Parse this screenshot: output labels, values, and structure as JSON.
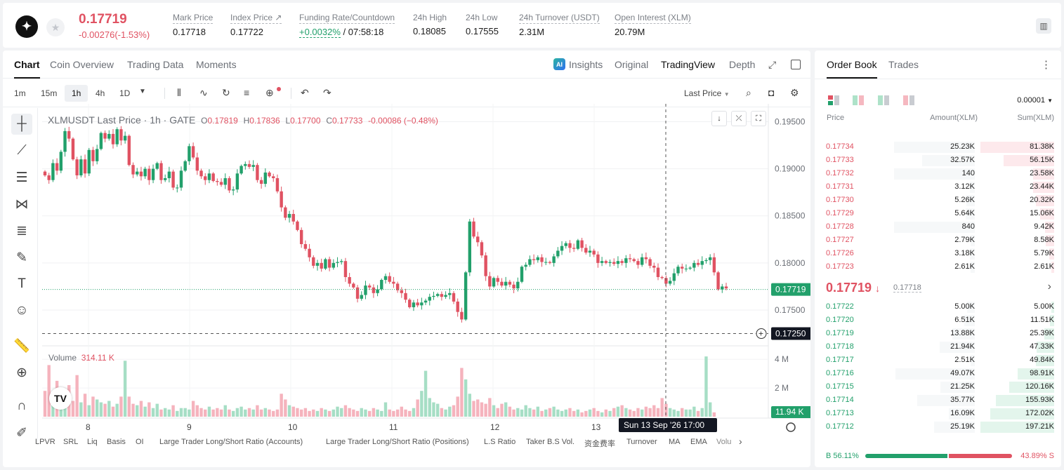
{
  "header": {
    "last_price": "0.17719",
    "change": "-0.00276(-1.53%)",
    "stats": [
      {
        "label": "Mark Price",
        "value": "0.17718"
      },
      {
        "label": "Index Price ↗",
        "value": "0.17722"
      },
      {
        "label": "Funding Rate/Countdown",
        "value": "+0.0032%",
        "value2": " / 07:58:18"
      },
      {
        "label": "24h High",
        "value": "0.18085"
      },
      {
        "label": "24h Low",
        "value": "0.17555"
      },
      {
        "label": "24h Turnover (USDT)",
        "value": "2.31M"
      },
      {
        "label": "Open Interest (XLM)",
        "value": "20.79M"
      }
    ]
  },
  "chart_panel": {
    "tabs": [
      "Chart",
      "Coin Overview",
      "Trading Data",
      "Moments"
    ],
    "right_tabs": [
      "Insights",
      "Original",
      "TradingView",
      "Depth"
    ],
    "ai_badge": "AI",
    "timeframes": [
      "1m",
      "15m",
      "1h",
      "4h",
      "1D"
    ],
    "last_price_selector": "Last Price",
    "legend": {
      "symbol": "XLMUSDT Last Price · 1h · GATE",
      "o_key": "O",
      "o": "0.17819",
      "h_key": "H",
      "h": "0.17836",
      "l_key": "L",
      "l": "0.17700",
      "c_key": "C",
      "c": "0.17733",
      "chg": "-0.00086 (−0.48%)"
    },
    "volume_label": "Volume",
    "volume_value": "314.11 K",
    "price_tag": "0.17719",
    "crosshair_price": "0.17250",
    "volume_tag": "11.94 K",
    "crosshair_time": "Sun 13 Sep '26   17:00",
    "indicators": [
      "LPVR",
      "SRL",
      "Liq",
      "Basis",
      "OI",
      "Large Trader Long/Short Ratio (Accounts)",
      "Large Trader Long/Short Ratio (Positions)",
      "L.S Ratio",
      "Taker B.S Vol.",
      "资金费率",
      "Turnover",
      "MA",
      "EMA",
      "Volu"
    ]
  },
  "chart_data": {
    "type": "candlestick",
    "title": "XLMUSDT Last Price · 1h · GATE",
    "y_ticks": [
      "0.19500",
      "0.19000",
      "0.18500",
      "0.18000",
      "0.17500"
    ],
    "ylim": [
      0.1712,
      0.1963
    ],
    "x_ticks": [
      "8",
      "9",
      "10",
      "11",
      "12",
      "13"
    ],
    "volume_ticks": [
      "4 M",
      "2 M"
    ],
    "volume_ylim": [
      0,
      4500000
    ],
    "up_color": "#22a06b",
    "down_color": "#e05262",
    "closes": [
      0.1893,
      0.1888,
      0.1906,
      0.1898,
      0.1918,
      0.194,
      0.1932,
      0.191,
      0.1893,
      0.191,
      0.1895,
      0.192,
      0.1908,
      0.1921,
      0.1938,
      0.1932,
      0.1937,
      0.1926,
      0.1942,
      0.193,
      0.1935,
      0.1904,
      0.1894,
      0.1897,
      0.1892,
      0.19,
      0.1888,
      0.19,
      0.1906,
      0.1888,
      0.189,
      0.1897,
      0.188,
      0.188,
      0.1898,
      0.1908,
      0.1924,
      0.1912,
      0.1898,
      0.1892,
      0.1888,
      0.1895,
      0.1887,
      0.1886,
      0.1883,
      0.189,
      0.1877,
      0.1878,
      0.1895,
      0.1903,
      0.1905,
      0.1902,
      0.1904,
      0.1888,
      0.1884,
      0.1896,
      0.1892,
      0.189,
      0.1876,
      0.1859,
      0.1848,
      0.1852,
      0.1844,
      0.1835,
      0.182,
      0.1815,
      0.1806,
      0.1797,
      0.18,
      0.1794,
      0.1804,
      0.1795,
      0.18,
      0.1801,
      0.1802,
      0.1785,
      0.1778,
      0.1774,
      0.1762,
      0.1766,
      0.1776,
      0.1774,
      0.1768,
      0.1772,
      0.1782,
      0.1786,
      0.178,
      0.1778,
      0.1771,
      0.1768,
      0.1761,
      0.1753,
      0.1758,
      0.1755,
      0.1758,
      0.176,
      0.1764,
      0.1765,
      0.1767,
      0.1764,
      0.1766,
      0.1768,
      0.1759,
      0.1748,
      0.174,
      0.179,
      0.1844,
      0.1828,
      0.1822,
      0.1808,
      0.1786,
      0.1775,
      0.1784,
      0.178,
      0.1776,
      0.178,
      0.1777,
      0.1773,
      0.178,
      0.1796,
      0.1798,
      0.1804,
      0.1803,
      0.1806,
      0.1801,
      0.1801,
      0.18,
      0.1807,
      0.1813,
      0.1818,
      0.1821,
      0.1816,
      0.1815,
      0.1824,
      0.1816,
      0.1811,
      0.1813,
      0.1809,
      0.18,
      0.1802,
      0.18,
      0.1801,
      0.1799,
      0.1802,
      0.18,
      0.1805,
      0.1804,
      0.1802,
      0.1798,
      0.1806,
      0.1804,
      0.1797,
      0.1795,
      0.1785,
      0.1784,
      0.1778,
      0.1781,
      0.1789,
      0.1796,
      0.1794,
      0.1794,
      0.1795,
      0.18,
      0.1798,
      0.1802,
      0.1803,
      0.1806,
      0.179,
      0.1772,
      0.1775,
      0.1773
    ],
    "volumes": [
      1.8,
      3.6,
      1.1,
      2.5,
      1.6,
      1.3,
      2.2,
      1.1,
      2.9,
      1.0,
      1.6,
      0.8,
      1.4,
      1.2,
      1.0,
      0.9,
      1.1,
      0.7,
      0.9,
      1.4,
      3.9,
      1.4,
      0.9,
      0.8,
      1.1,
      0.7,
      1.0,
      0.6,
      0.9,
      0.5,
      0.6,
      0.5,
      0.8,
      0.4,
      0.6,
      0.6,
      0.5,
      1.1,
      0.8,
      0.6,
      0.5,
      0.7,
      0.5,
      0.6,
      0.5,
      0.8,
      0.5,
      0.4,
      0.6,
      0.7,
      0.5,
      0.6,
      0.5,
      0.8,
      0.5,
      0.6,
      0.5,
      0.4,
      0.5,
      1.6,
      1.2,
      0.8,
      0.7,
      0.6,
      0.5,
      0.6,
      0.4,
      0.5,
      0.4,
      0.6,
      0.5,
      0.4,
      0.5,
      0.7,
      0.6,
      0.8,
      0.6,
      0.5,
      0.4,
      0.6,
      0.5,
      0.4,
      0.6,
      0.5,
      0.4,
      1.0,
      0.5,
      0.4,
      0.5,
      0.7,
      0.5,
      0.4,
      0.6,
      1.2,
      1.8,
      3.2,
      1.3,
      1.0,
      0.9,
      0.6,
      0.5,
      0.7,
      0.8,
      1.4,
      3.4,
      2.6,
      1.6,
      1.1,
      1.2,
      1.0,
      0.9,
      1.3,
      0.8,
      0.6,
      0.9,
      1.0,
      0.7,
      0.5,
      0.6,
      0.5,
      0.8,
      0.6,
      0.5,
      0.7,
      0.4,
      0.5,
      0.6,
      0.7,
      0.5,
      0.4,
      0.5,
      0.6,
      0.4,
      0.5,
      0.3,
      0.4,
      0.5,
      0.6,
      0.4,
      0.3,
      0.5,
      0.4,
      0.6,
      0.7,
      0.8,
      0.6,
      0.5,
      0.4,
      0.6,
      0.5,
      0.7,
      0.6,
      0.8,
      0.6,
      1.3,
      0.9,
      0.6,
      0.5,
      0.4,
      0.6,
      0.5,
      0.5,
      0.7,
      0.4,
      0.6,
      4.2,
      1.0,
      0.3
    ]
  },
  "order_book": {
    "tabs": [
      "Order Book",
      "Trades"
    ],
    "precision": "0.00001",
    "headers": {
      "price": "Price",
      "amount": "Amount(XLM)",
      "sum": "Sum(XLM)"
    },
    "asks": [
      [
        "0.17734",
        "25.23K",
        "81.38K"
      ],
      [
        "0.17733",
        "32.57K",
        "56.15K"
      ],
      [
        "0.17732",
        "140",
        "23.58K"
      ],
      [
        "0.17731",
        "3.12K",
        "23.44K"
      ],
      [
        "0.17730",
        "5.26K",
        "20.32K"
      ],
      [
        "0.17729",
        "5.64K",
        "15.06K"
      ],
      [
        "0.17728",
        "840",
        "9.42K"
      ],
      [
        "0.17727",
        "2.79K",
        "8.58K"
      ],
      [
        "0.17726",
        "3.18K",
        "5.79K"
      ],
      [
        "0.17723",
        "2.61K",
        "2.61K"
      ]
    ],
    "ask_depth": [
      1.0,
      0.69,
      0.29,
      0.29,
      0.25,
      0.19,
      0.12,
      0.11,
      0.07,
      0.03
    ],
    "mid_price": "0.17719",
    "mid_arrow": "↓",
    "mark_price": "0.17718",
    "bids": [
      [
        "0.17722",
        "5.00K",
        "5.00K"
      ],
      [
        "0.17720",
        "6.51K",
        "11.51K"
      ],
      [
        "0.17719",
        "13.88K",
        "25.39K"
      ],
      [
        "0.17718",
        "21.94K",
        "47.33K"
      ],
      [
        "0.17717",
        "2.51K",
        "49.84K"
      ],
      [
        "0.17716",
        "49.07K",
        "98.91K"
      ],
      [
        "0.17715",
        "21.25K",
        "120.16K"
      ],
      [
        "0.17714",
        "35.77K",
        "155.93K"
      ],
      [
        "0.17713",
        "16.09K",
        "172.02K"
      ],
      [
        "0.17712",
        "25.19K",
        "197.21K"
      ]
    ],
    "bid_depth": [
      0.03,
      0.06,
      0.13,
      0.24,
      0.25,
      0.5,
      0.61,
      0.79,
      0.87,
      1.0
    ],
    "buy_label": "B 56.11%",
    "sell_label": "43.89% S",
    "buy_ratio": 0.5611
  }
}
